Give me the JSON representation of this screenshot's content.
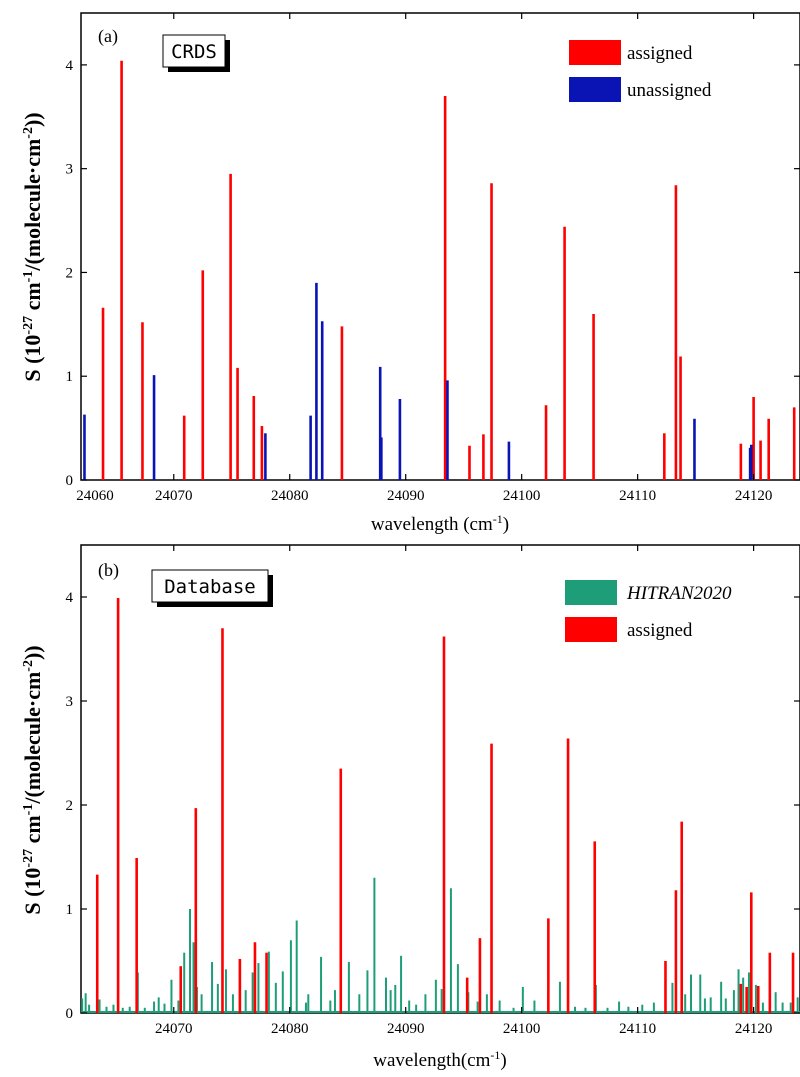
{
  "chart_data": [
    {
      "type": "bar",
      "panel_label": "(a)",
      "box_label": "CRDS",
      "xlabel": "wavelength (cm",
      "xlabel_sup": "-1",
      "xlabel_end": ")",
      "ylabel_pre": "S (10",
      "ylabel_sup1": "-27",
      "ylabel_mid": " cm",
      "ylabel_sup2": "-1",
      "ylabel_mid2": "/(molecule·cm",
      "ylabel_sup3": "-2",
      "ylabel_end": "))",
      "xlim": [
        24062,
        24124
      ],
      "ylim": [
        0,
        4.5
      ],
      "xticks": [
        24060,
        24070,
        24080,
        24090,
        24100,
        24110,
        24120
      ],
      "yticks": [
        0,
        1,
        2,
        3,
        4
      ],
      "legend_position": "top-right",
      "series": [
        {
          "name": "assigned",
          "color": "#ff0000",
          "x": [
            24063.9,
            24065.5,
            24067.3,
            24070.9,
            24072.5,
            24074.9,
            24075.5,
            24076.9,
            24077.6,
            24084.5,
            24093.4,
            24095.5,
            24096.7,
            24097.4,
            24102.1,
            24103.7,
            24106.2,
            24112.3,
            24113.3,
            24113.7,
            24118.9,
            24120.0,
            24120.6,
            24121.3,
            24123.5
          ],
          "values": [
            1.66,
            4.04,
            1.52,
            0.62,
            2.02,
            2.95,
            1.08,
            0.81,
            0.52,
            1.48,
            3.7,
            0.33,
            0.44,
            2.86,
            0.72,
            2.44,
            1.6,
            0.45,
            2.84,
            1.19,
            0.35,
            0.8,
            0.38,
            0.59,
            0.7
          ]
        },
        {
          "name": "unassigned",
          "color": "#0a14b4",
          "x": [
            24062.3,
            24068.3,
            24077.9,
            24081.8,
            24082.3,
            24082.8,
            24087.8,
            24087.9,
            24089.5,
            24093.6,
            24098.9,
            24114.9,
            24119.7,
            24119.8
          ],
          "values": [
            0.63,
            1.01,
            0.45,
            0.62,
            1.9,
            1.53,
            1.09,
            0.41,
            0.78,
            0.96,
            0.37,
            0.59,
            0.31,
            0.34
          ]
        }
      ]
    },
    {
      "type": "bar",
      "panel_label": "(b)",
      "box_label": "Database",
      "xlabel": "wavelength(cm",
      "xlabel_sup": "-1",
      "xlabel_end": ")",
      "ylabel_pre": "S (10",
      "ylabel_sup1": "-27",
      "ylabel_mid": " cm",
      "ylabel_sup2": "-1",
      "ylabel_mid2": "/(molecule·cm",
      "ylabel_sup3": "-2",
      "ylabel_end": "))",
      "xlim": [
        24062,
        24124
      ],
      "ylim": [
        0,
        4.5
      ],
      "xticks": [
        24070,
        24080,
        24090,
        24100,
        24110,
        24120
      ],
      "yticks": [
        0,
        1,
        2,
        3,
        4
      ],
      "legend_position": "top-right",
      "series": [
        {
          "name": "HITRAN2020",
          "color": "#1e9e78",
          "x": [
            24062.1,
            24062.4,
            24062.7,
            24063.6,
            24064.2,
            24064.8,
            24065.6,
            24066.2,
            24066.9,
            24067.5,
            24068.3,
            24068.7,
            24069.2,
            24069.8,
            24070.4,
            24070.9,
            24071.4,
            24071.7,
            24072.0,
            24072.4,
            24073.3,
            24073.8,
            24074.5,
            24075.1,
            24076.2,
            24076.8,
            24077.3,
            24078.2,
            24078.8,
            24079.4,
            24080.1,
            24080.6,
            24081.4,
            24081.6,
            24082.7,
            24083.5,
            24083.9,
            24085.1,
            24086.0,
            24086.7,
            24087.3,
            24088.3,
            24088.7,
            24089.1,
            24089.6,
            24090.3,
            24090.9,
            24091.7,
            24092.6,
            24093.1,
            24093.9,
            24094.5,
            24095.4,
            24096.2,
            24097.0,
            24098.1,
            24099.3,
            24100.1,
            24101.1,
            24102.3,
            24103.3,
            24104.6,
            24105.5,
            24106.4,
            24107.4,
            24108.4,
            24109.2,
            24110.4,
            24111.4,
            24112.4,
            24113.0,
            24114.1,
            24114.6,
            24115.4,
            24115.8,
            24116.3,
            24117.2,
            24117.6,
            24118.3,
            24118.7,
            24119.1,
            24119.6,
            24120.2,
            24120.8,
            24121.4,
            24121.9,
            24122.5,
            24123.2,
            24123.8
          ],
          "values": [
            0.14,
            0.19,
            0.08,
            0.13,
            0.06,
            0.08,
            0.05,
            0.06,
            0.39,
            0.05,
            0.11,
            0.15,
            0.09,
            0.32,
            0.12,
            0.58,
            1.0,
            0.68,
            0.25,
            0.18,
            0.49,
            0.28,
            0.42,
            0.18,
            0.22,
            0.39,
            0.48,
            0.59,
            0.29,
            0.4,
            0.7,
            0.89,
            0.1,
            0.18,
            0.54,
            0.12,
            0.22,
            0.49,
            0.18,
            0.41,
            1.3,
            0.34,
            0.22,
            0.27,
            0.55,
            0.12,
            0.08,
            0.18,
            0.32,
            0.23,
            1.2,
            0.47,
            0.2,
            0.11,
            0.18,
            0.12,
            0.05,
            0.25,
            0.12,
            0.22,
            0.3,
            0.06,
            0.05,
            0.27,
            0.05,
            0.11,
            0.06,
            0.08,
            0.1,
            0.14,
            0.29,
            0.18,
            0.37,
            0.37,
            0.14,
            0.15,
            0.3,
            0.14,
            0.22,
            0.42,
            0.34,
            0.39,
            0.27,
            0.1,
            0.14,
            0.2,
            0.1,
            0.1,
            0.15
          ]
        },
        {
          "name": "assigned",
          "color": "#ff0000",
          "x": [
            24063.4,
            24065.2,
            24066.8,
            24070.6,
            24071.9,
            24074.2,
            24075.7,
            24077.0,
            24078.0,
            24084.4,
            24093.3,
            24095.3,
            24096.4,
            24097.4,
            24102.3,
            24104.0,
            24106.3,
            24112.4,
            24113.3,
            24113.8,
            24118.9,
            24119.4,
            24119.8,
            24120.4,
            24121.4,
            24123.4
          ],
          "values": [
            1.33,
            3.99,
            1.49,
            0.45,
            1.97,
            3.7,
            0.52,
            0.68,
            0.58,
            2.35,
            3.62,
            0.34,
            0.72,
            2.59,
            0.91,
            2.64,
            1.65,
            0.5,
            1.18,
            1.84,
            0.28,
            0.25,
            1.16,
            0.26,
            0.58,
            0.58
          ]
        }
      ]
    }
  ]
}
